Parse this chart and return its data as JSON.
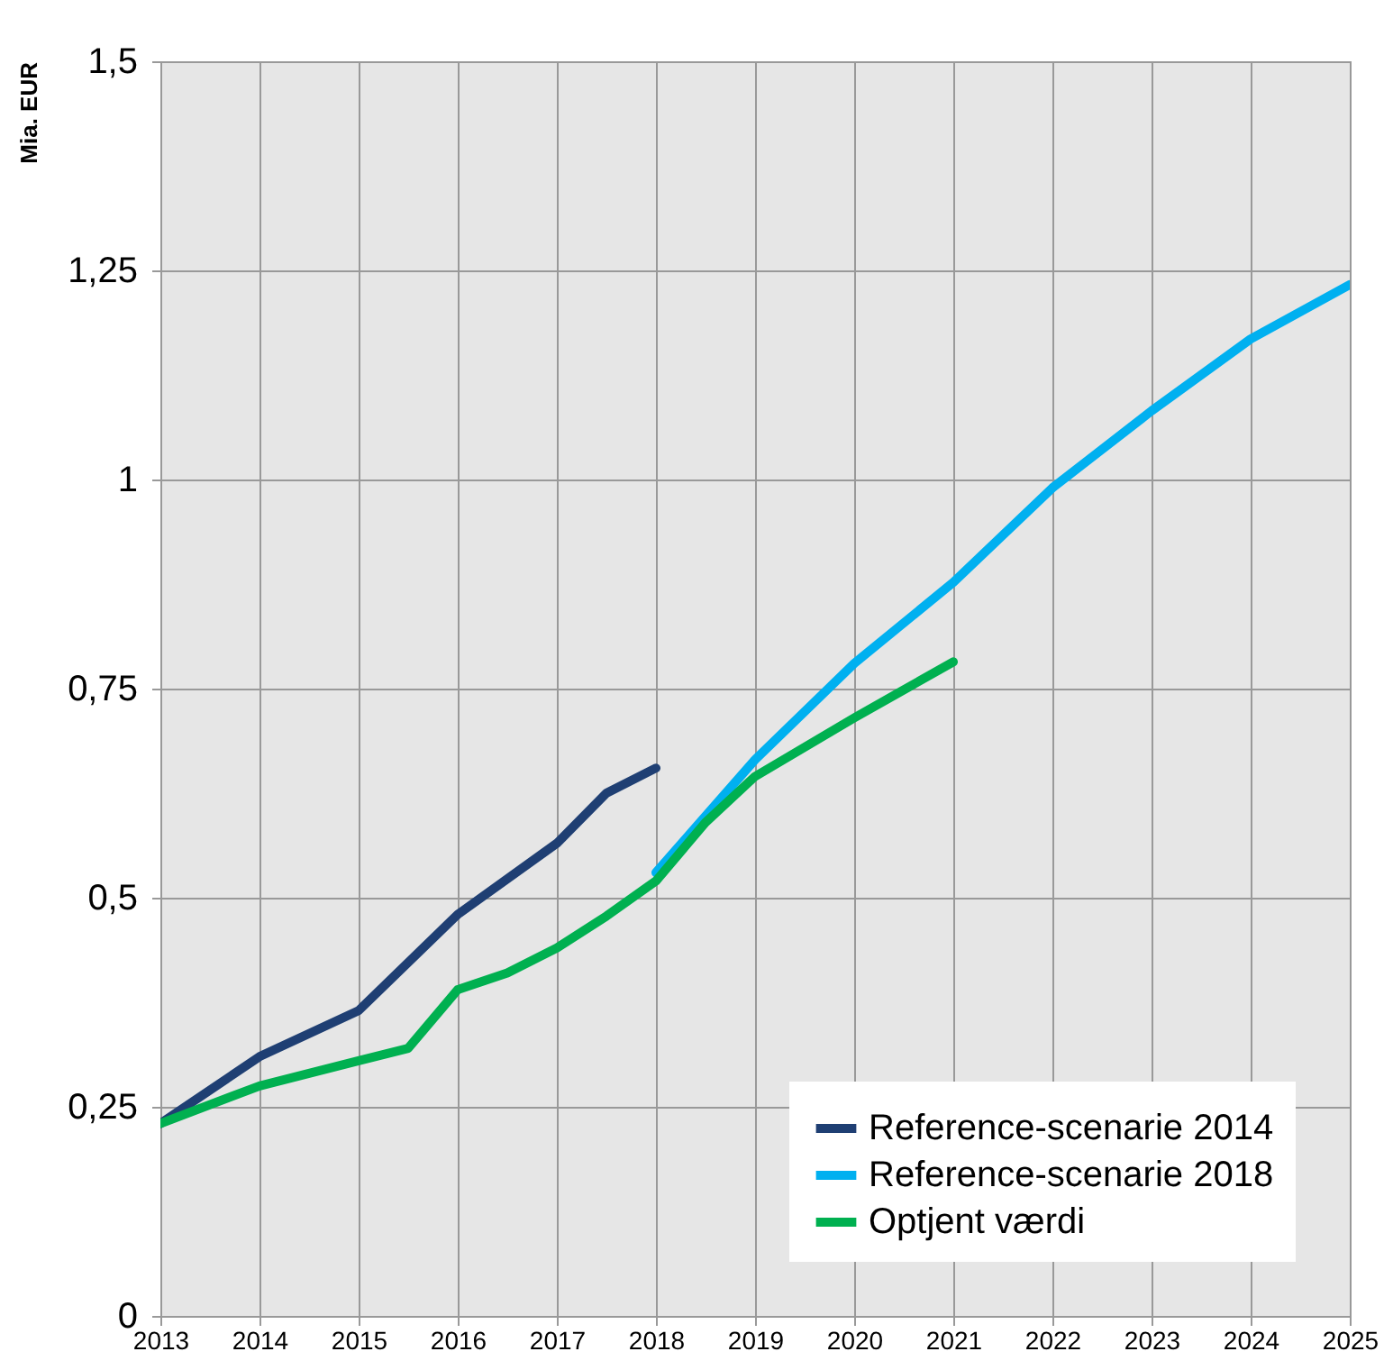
{
  "chart_data": {
    "type": "line",
    "ylabel": "Mia. EUR",
    "xlim": [
      2013,
      2025
    ],
    "xticks": [
      2013,
      2014,
      2015,
      2016,
      2017,
      2018,
      2019,
      2020,
      2021,
      2022,
      2023,
      2024,
      2025
    ],
    "ylim": [
      0,
      1.5
    ],
    "yticks": [
      0,
      {
        "value": 0.25,
        "label": "0,25"
      },
      {
        "value": 0.5,
        "label": "0,5"
      },
      {
        "value": 0.75,
        "label": "0,75"
      },
      1,
      {
        "value": 1.25,
        "label": "1,25"
      },
      {
        "value": 1.5,
        "label": "1,5"
      }
    ],
    "grid": true,
    "legend": "bottom right",
    "marker": "none",
    "line_style": "solid",
    "series": [
      {
        "name": "Reference-scenarie 2014",
        "color": "#1f3f73",
        "x": [
          2013,
          2014,
          2015,
          2016,
          2017,
          2017.5,
          2018
        ],
        "values": [
          0.23,
          0.31,
          0.365,
          0.48,
          0.565,
          0.625,
          0.655
        ]
      },
      {
        "name": "Reference-scenarie 2018",
        "color": "#00b0f0",
        "x": [
          2018,
          2019,
          2020,
          2021,
          2022,
          2023,
          2024,
          2025
        ],
        "values": [
          0.53,
          0.665,
          0.78,
          0.877,
          0.99,
          1.082,
          1.168,
          1.233
        ]
      },
      {
        "name": "Optjent værdi",
        "color": "#00b050",
        "x": [
          2013,
          2014,
          2015,
          2015.5,
          2016,
          2016.5,
          2017,
          2017.5,
          2018,
          2018.5,
          2019,
          2020,
          2021
        ],
        "values": [
          0.23,
          0.275,
          0.305,
          0.32,
          0.39,
          0.41,
          0.44,
          0.478,
          0.52,
          0.59,
          0.645,
          0.715,
          0.782
        ]
      }
    ]
  }
}
